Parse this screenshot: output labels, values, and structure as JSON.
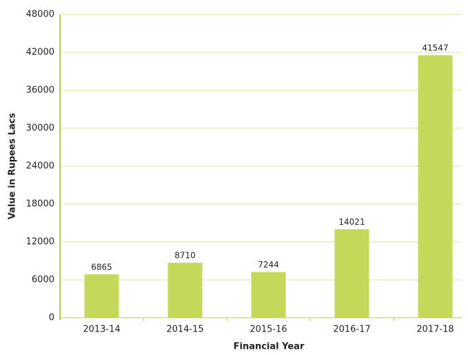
{
  "chart_data": {
    "type": "bar",
    "xlabel": "Financial Year",
    "ylabel": "Value in Rupees Lacs",
    "categories": [
      "2013-14",
      "2014-15",
      "2015-16",
      "2016-17",
      "2017-18"
    ],
    "values": [
      6865,
      8710,
      7244,
      14021,
      41547
    ],
    "color": "#c6d85a",
    "ylim": [
      0,
      48000
    ],
    "yticks": [
      0,
      6000,
      12000,
      18000,
      24000,
      30000,
      36000,
      42000,
      48000
    ],
    "grid": true,
    "show_value_labels": true
  }
}
